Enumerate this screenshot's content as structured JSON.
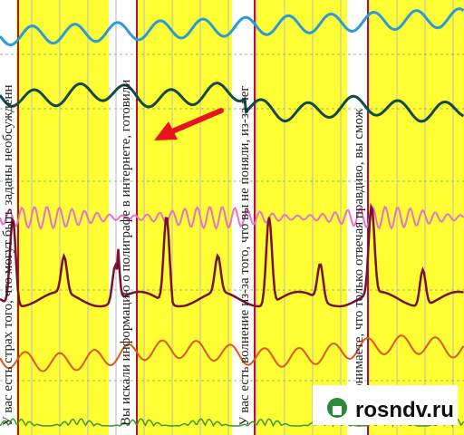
{
  "annotations": [
    "У вас есть страх того, что могут быть заданы необсужденн",
    "Вы искали информацию о полиграфе в интернете, готовили",
    "У вас есть волнение из-за того, что вы не поняли, из-за чег",
    "етко понимаете, что только отвечая правдиво, вы смож"
  ],
  "watermark": "rosndv.ru"
}
